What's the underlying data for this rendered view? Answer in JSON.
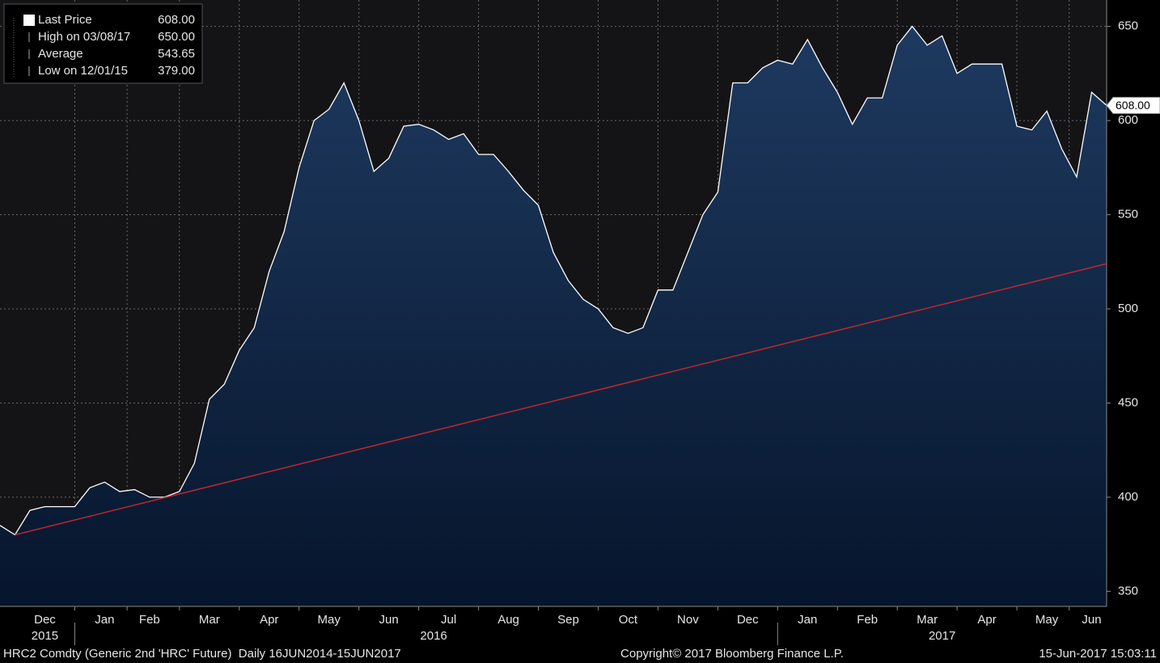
{
  "chart_data": {
    "type": "area",
    "categories": [
      null,
      null,
      null,
      "Dec",
      null,
      null,
      null,
      "Jan",
      null,
      null,
      "Feb",
      null,
      null,
      null,
      "Mar",
      null,
      null,
      null,
      "Apr",
      null,
      null,
      null,
      "May",
      null,
      null,
      null,
      "Jun",
      null,
      null,
      null,
      "Jul",
      null,
      null,
      null,
      "Aug",
      null,
      null,
      null,
      "Sep",
      null,
      null,
      null,
      "Oct",
      null,
      null,
      null,
      "Nov",
      null,
      null,
      null,
      "Dec",
      null,
      null,
      null,
      "Jan",
      null,
      null,
      null,
      "Feb",
      null,
      null,
      null,
      "Mar",
      null,
      null,
      null,
      "Apr",
      null,
      null,
      null,
      "May",
      null,
      null,
      "Jun",
      null
    ],
    "years": [
      null,
      null,
      null,
      "2015",
      null,
      null,
      null,
      null,
      null,
      null,
      null,
      null,
      null,
      null,
      null,
      null,
      null,
      null,
      null,
      null,
      null,
      null,
      null,
      null,
      null,
      null,
      null,
      null,
      null,
      "2016",
      null,
      null,
      null,
      null,
      null,
      null,
      null,
      null,
      null,
      null,
      null,
      null,
      null,
      null,
      null,
      null,
      null,
      null,
      null,
      null,
      null,
      null,
      null,
      null,
      null,
      null,
      null,
      null,
      null,
      null,
      null,
      null,
      null,
      "2017",
      null,
      null,
      null,
      null,
      null,
      null,
      null,
      null,
      null,
      null,
      null
    ],
    "series": [
      {
        "name": "Last Price",
        "color": "#ffffff",
        "values": [
          385,
          380,
          393,
          395,
          395,
          395,
          405,
          408,
          403,
          404,
          400,
          400,
          403,
          418,
          452,
          460,
          478,
          490,
          520,
          541,
          575,
          600,
          606,
          620,
          600,
          573,
          580,
          597,
          598,
          595,
          590,
          593,
          582,
          582,
          573,
          563,
          555,
          530,
          515,
          505,
          500,
          490,
          487,
          490,
          510,
          510,
          530,
          550,
          562,
          620,
          620,
          628,
          632,
          630,
          643,
          628,
          615,
          598,
          612,
          612,
          640,
          650,
          640,
          645,
          625,
          630,
          630,
          630,
          597,
          595,
          605,
          585,
          570,
          615,
          608
        ]
      }
    ],
    "trend_line": {
      "color": "#c0262d",
      "values": [
        380,
        524
      ]
    },
    "legend": [
      {
        "name": "Last Price",
        "value": 608,
        "value_label": "608.00"
      },
      {
        "name": "High on 03/08/17",
        "value": 650,
        "value_label": "650.00"
      },
      {
        "name": "Average",
        "value": 543.65,
        "value_label": "543.65"
      },
      {
        "name": "Low on 12/01/15",
        "value": 379,
        "value_label": "379.00"
      }
    ],
    "ylim": [
      342,
      664
    ],
    "yticks": [
      350,
      400,
      450,
      500,
      550,
      600,
      650
    ],
    "grid": true,
    "footer": {
      "left": "HRC2 Comdty (Generic 2nd 'HRC' Future)  Daily 16JUN2014-15JUN2017",
      "center": "Copyright© 2017 Bloomberg Finance L.P.",
      "right": "15-Jun-2017 15:03:11"
    }
  }
}
